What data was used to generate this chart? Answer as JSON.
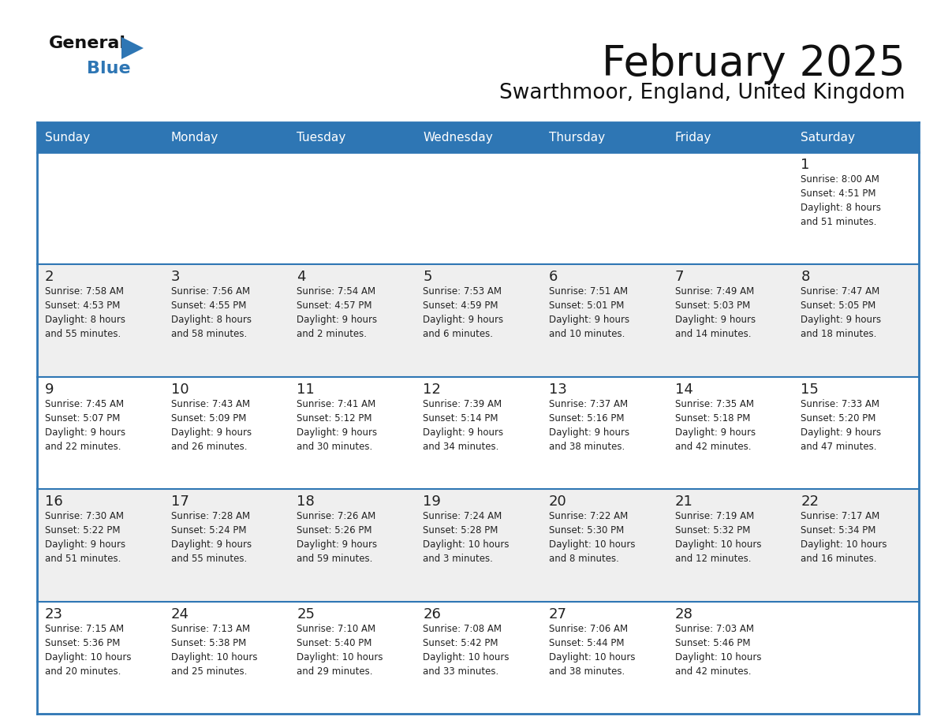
{
  "title": "February 2025",
  "subtitle": "Swarthmoor, England, United Kingdom",
  "days_of_week": [
    "Sunday",
    "Monday",
    "Tuesday",
    "Wednesday",
    "Thursday",
    "Friday",
    "Saturday"
  ],
  "header_bg": "#2E76B4",
  "header_text": "#FFFFFF",
  "row_bg_white": "#FFFFFF",
  "row_bg_gray": "#EFEFEF",
  "border_color": "#2E76B4",
  "sep_color": "#2E76B4",
  "day_number_color": "#222222",
  "info_text_color": "#222222",
  "title_color": "#111111",
  "subtitle_color": "#111111",
  "logo_text_color": "#111111",
  "logo_blue_color": "#2E76B4",
  "calendar_data": [
    [
      null,
      null,
      null,
      null,
      null,
      null,
      {
        "day": "1",
        "sunrise": "8:00 AM",
        "sunset": "4:51 PM",
        "daylight": "8 hours\nand 51 minutes."
      }
    ],
    [
      {
        "day": "2",
        "sunrise": "7:58 AM",
        "sunset": "4:53 PM",
        "daylight": "8 hours\nand 55 minutes."
      },
      {
        "day": "3",
        "sunrise": "7:56 AM",
        "sunset": "4:55 PM",
        "daylight": "8 hours\nand 58 minutes."
      },
      {
        "day": "4",
        "sunrise": "7:54 AM",
        "sunset": "4:57 PM",
        "daylight": "9 hours\nand 2 minutes."
      },
      {
        "day": "5",
        "sunrise": "7:53 AM",
        "sunset": "4:59 PM",
        "daylight": "9 hours\nand 6 minutes."
      },
      {
        "day": "6",
        "sunrise": "7:51 AM",
        "sunset": "5:01 PM",
        "daylight": "9 hours\nand 10 minutes."
      },
      {
        "day": "7",
        "sunrise": "7:49 AM",
        "sunset": "5:03 PM",
        "daylight": "9 hours\nand 14 minutes."
      },
      {
        "day": "8",
        "sunrise": "7:47 AM",
        "sunset": "5:05 PM",
        "daylight": "9 hours\nand 18 minutes."
      }
    ],
    [
      {
        "day": "9",
        "sunrise": "7:45 AM",
        "sunset": "5:07 PM",
        "daylight": "9 hours\nand 22 minutes."
      },
      {
        "day": "10",
        "sunrise": "7:43 AM",
        "sunset": "5:09 PM",
        "daylight": "9 hours\nand 26 minutes."
      },
      {
        "day": "11",
        "sunrise": "7:41 AM",
        "sunset": "5:12 PM",
        "daylight": "9 hours\nand 30 minutes."
      },
      {
        "day": "12",
        "sunrise": "7:39 AM",
        "sunset": "5:14 PM",
        "daylight": "9 hours\nand 34 minutes."
      },
      {
        "day": "13",
        "sunrise": "7:37 AM",
        "sunset": "5:16 PM",
        "daylight": "9 hours\nand 38 minutes."
      },
      {
        "day": "14",
        "sunrise": "7:35 AM",
        "sunset": "5:18 PM",
        "daylight": "9 hours\nand 42 minutes."
      },
      {
        "day": "15",
        "sunrise": "7:33 AM",
        "sunset": "5:20 PM",
        "daylight": "9 hours\nand 47 minutes."
      }
    ],
    [
      {
        "day": "16",
        "sunrise": "7:30 AM",
        "sunset": "5:22 PM",
        "daylight": "9 hours\nand 51 minutes."
      },
      {
        "day": "17",
        "sunrise": "7:28 AM",
        "sunset": "5:24 PM",
        "daylight": "9 hours\nand 55 minutes."
      },
      {
        "day": "18",
        "sunrise": "7:26 AM",
        "sunset": "5:26 PM",
        "daylight": "9 hours\nand 59 minutes."
      },
      {
        "day": "19",
        "sunrise": "7:24 AM",
        "sunset": "5:28 PM",
        "daylight": "10 hours\nand 3 minutes."
      },
      {
        "day": "20",
        "sunrise": "7:22 AM",
        "sunset": "5:30 PM",
        "daylight": "10 hours\nand 8 minutes."
      },
      {
        "day": "21",
        "sunrise": "7:19 AM",
        "sunset": "5:32 PM",
        "daylight": "10 hours\nand 12 minutes."
      },
      {
        "day": "22",
        "sunrise": "7:17 AM",
        "sunset": "5:34 PM",
        "daylight": "10 hours\nand 16 minutes."
      }
    ],
    [
      {
        "day": "23",
        "sunrise": "7:15 AM",
        "sunset": "5:36 PM",
        "daylight": "10 hours\nand 20 minutes."
      },
      {
        "day": "24",
        "sunrise": "7:13 AM",
        "sunset": "5:38 PM",
        "daylight": "10 hours\nand 25 minutes."
      },
      {
        "day": "25",
        "sunrise": "7:10 AM",
        "sunset": "5:40 PM",
        "daylight": "10 hours\nand 29 minutes."
      },
      {
        "day": "26",
        "sunrise": "7:08 AM",
        "sunset": "5:42 PM",
        "daylight": "10 hours\nand 33 minutes."
      },
      {
        "day": "27",
        "sunrise": "7:06 AM",
        "sunset": "5:44 PM",
        "daylight": "10 hours\nand 38 minutes."
      },
      {
        "day": "28",
        "sunrise": "7:03 AM",
        "sunset": "5:46 PM",
        "daylight": "10 hours\nand 42 minutes."
      },
      null
    ]
  ]
}
